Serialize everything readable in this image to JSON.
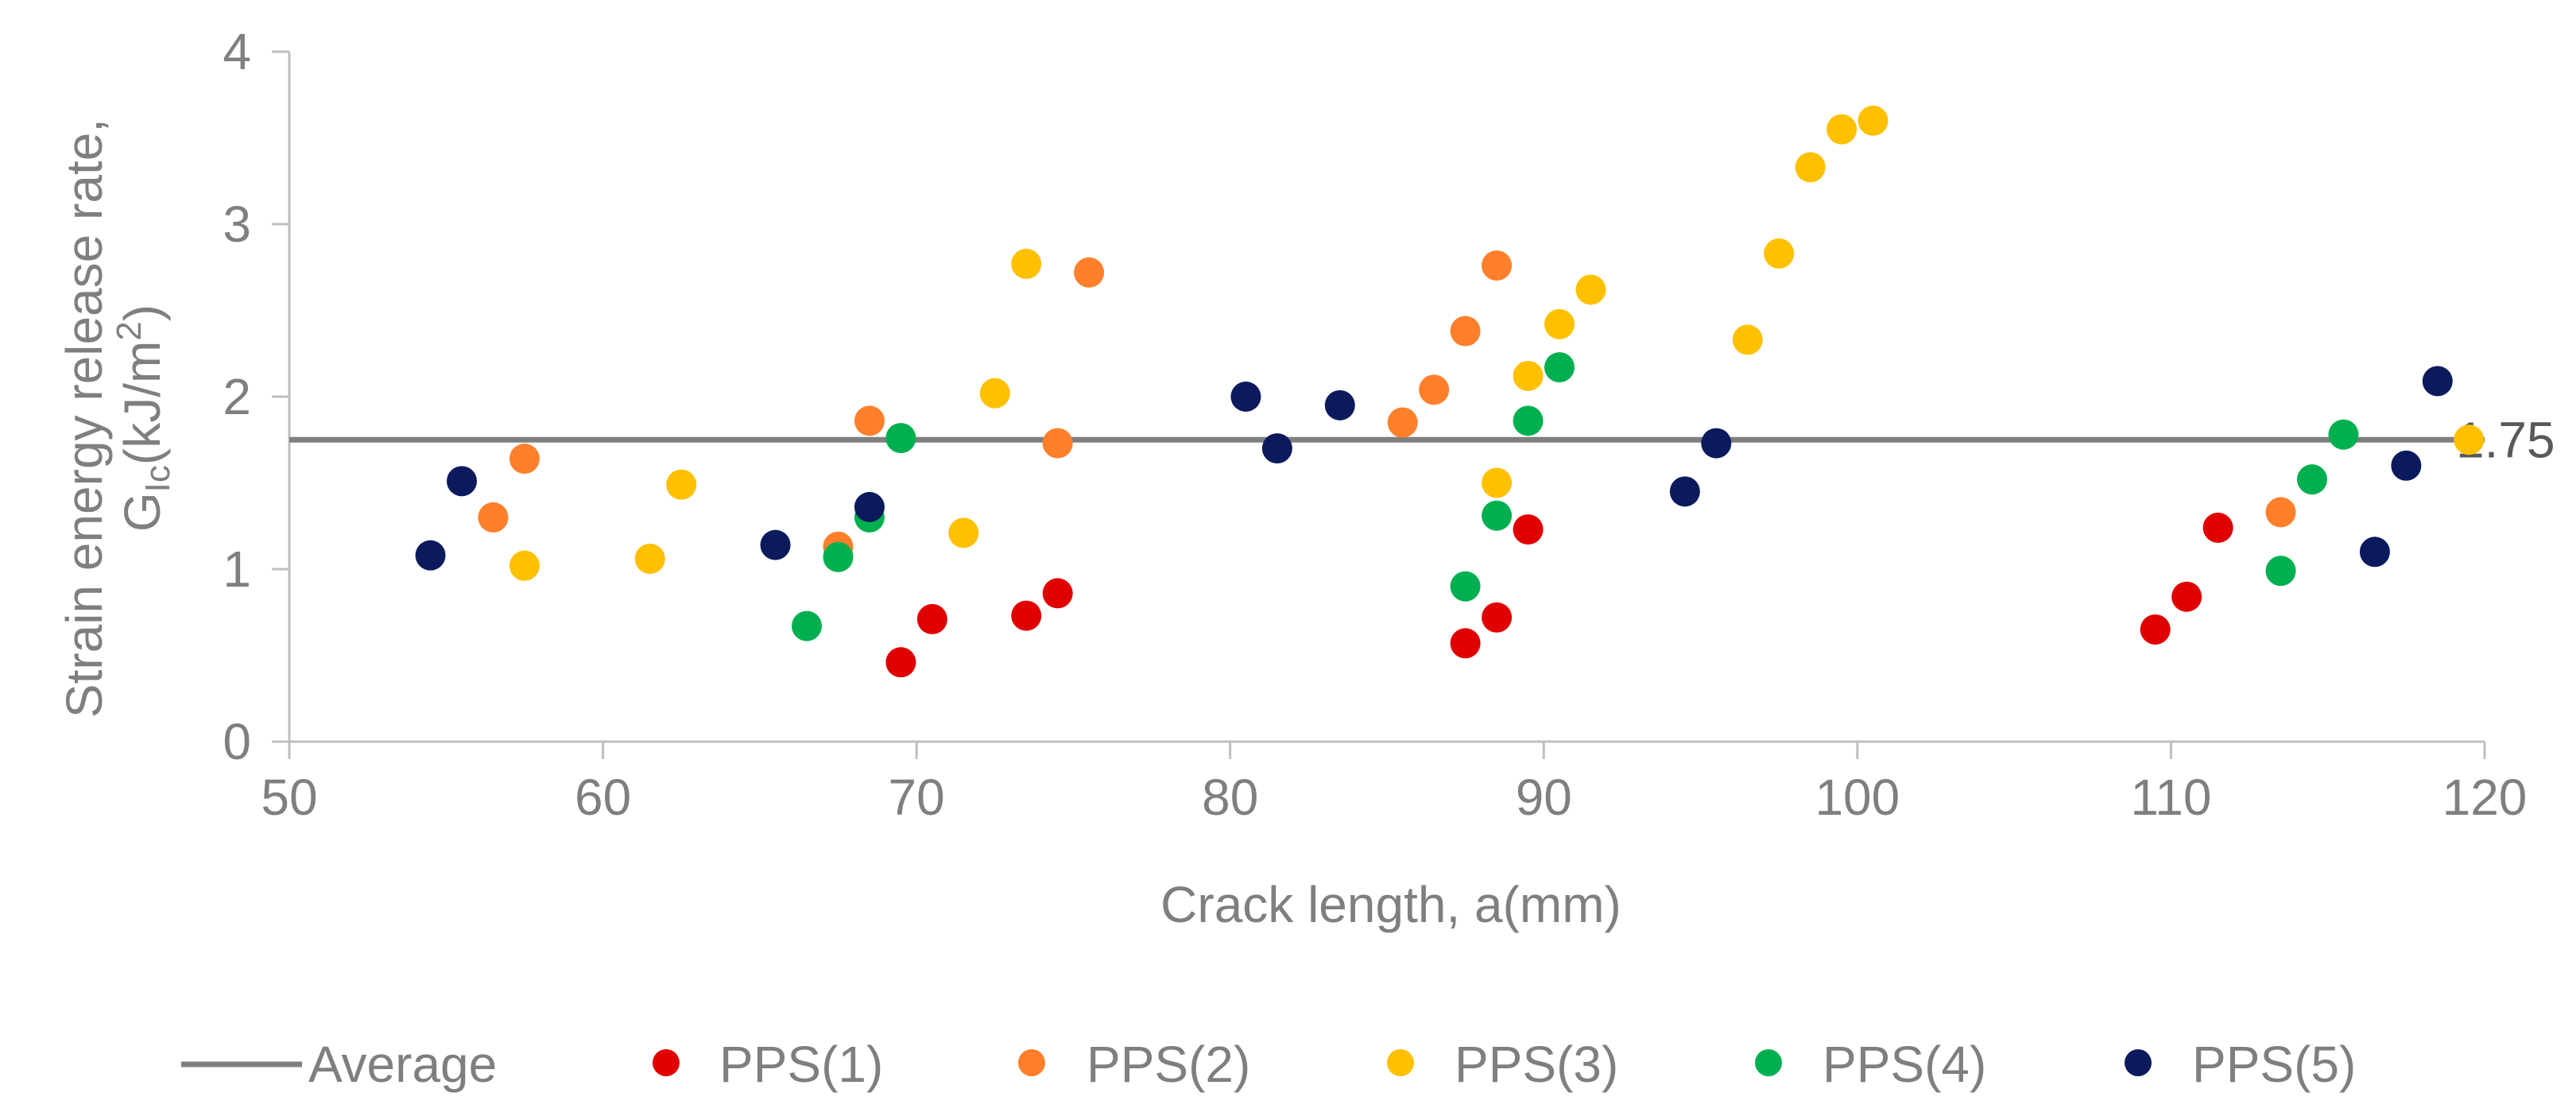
{
  "chart_data": {
    "type": "scatter",
    "title": "",
    "xlabel": "Crack length, a(mm)",
    "ylabel_line1": "Strain energy release rate,",
    "ylabel_line2_prefix": "G",
    "ylabel_line2_sub": "Ic",
    "ylabel_line2_mid": "(kJ/m",
    "ylabel_line2_sup": "2",
    "ylabel_line2_suffix": ")",
    "xlim": [
      50,
      120
    ],
    "ylim": [
      0,
      4
    ],
    "x_ticks": [
      "50",
      "60",
      "70",
      "80",
      "90",
      "100",
      "110",
      "120"
    ],
    "y_ticks": [
      "0",
      "1",
      "2",
      "3",
      "4"
    ],
    "average": {
      "name": "Average",
      "value": 1.75,
      "label": "1.75",
      "color": "#7f7f7f"
    },
    "legend_position": "bottom",
    "series": [
      {
        "name": "PPS(1)",
        "color": "#e00000",
        "points": [
          [
            69.5,
            0.46
          ],
          [
            70.5,
            0.71
          ],
          [
            73.5,
            0.73
          ],
          [
            74.5,
            0.86
          ],
          [
            87.5,
            0.57
          ],
          [
            88.5,
            0.72
          ],
          [
            89.5,
            1.23
          ],
          [
            109.5,
            0.65
          ],
          [
            110.5,
            0.84
          ],
          [
            111.5,
            1.24
          ]
        ]
      },
      {
        "name": "PPS(2)",
        "color": "#ff7f2a",
        "points": [
          [
            56.5,
            1.3
          ],
          [
            57.5,
            1.64
          ],
          [
            67.5,
            1.13
          ],
          [
            68.5,
            1.86
          ],
          [
            74.5,
            1.73
          ],
          [
            75.5,
            2.72
          ],
          [
            85.5,
            1.85
          ],
          [
            86.5,
            2.04
          ],
          [
            87.5,
            2.38
          ],
          [
            88.5,
            2.76
          ],
          [
            113.5,
            1.33
          ]
        ]
      },
      {
        "name": "PPS(3)",
        "color": "#ffc000",
        "points": [
          [
            57.5,
            1.02
          ],
          [
            61.5,
            1.06
          ],
          [
            62.5,
            1.49
          ],
          [
            71.5,
            1.21
          ],
          [
            72.5,
            2.02
          ],
          [
            73.5,
            2.77
          ],
          [
            88.5,
            1.5
          ],
          [
            89.5,
            2.12
          ],
          [
            90.5,
            2.42
          ],
          [
            91.5,
            2.62
          ],
          [
            96.5,
            2.33
          ],
          [
            97.5,
            2.83
          ],
          [
            98.5,
            3.33
          ],
          [
            99.5,
            3.55
          ],
          [
            100.5,
            3.6
          ],
          [
            119.5,
            1.75
          ]
        ]
      },
      {
        "name": "PPS(4)",
        "color": "#00b050",
        "points": [
          [
            66.5,
            0.67
          ],
          [
            67.5,
            1.07
          ],
          [
            68.5,
            1.3
          ],
          [
            69.5,
            1.76
          ],
          [
            87.5,
            0.9
          ],
          [
            88.5,
            1.31
          ],
          [
            89.5,
            1.86
          ],
          [
            90.5,
            2.17
          ],
          [
            113.5,
            0.99
          ],
          [
            114.5,
            1.52
          ],
          [
            115.5,
            1.78
          ]
        ]
      },
      {
        "name": "PPS(5)",
        "color": "#0b1a5c",
        "points": [
          [
            54.5,
            1.08
          ],
          [
            55.5,
            1.51
          ],
          [
            65.5,
            1.14
          ],
          [
            68.5,
            1.36
          ],
          [
            80.5,
            2.0
          ],
          [
            81.5,
            1.7
          ],
          [
            83.5,
            1.95
          ],
          [
            94.5,
            1.45
          ],
          [
            95.5,
            1.73
          ],
          [
            116.5,
            1.1
          ],
          [
            117.5,
            1.6
          ],
          [
            118.5,
            2.09
          ]
        ]
      }
    ]
  }
}
